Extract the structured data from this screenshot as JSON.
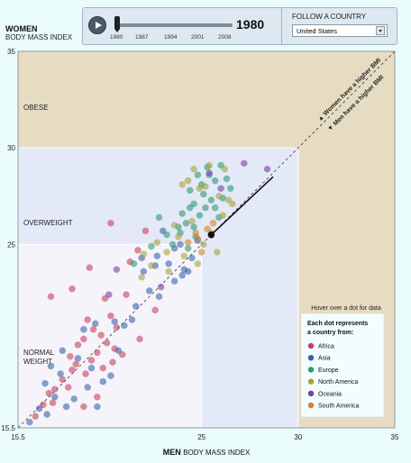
{
  "header": {
    "y_title": "WOMEN",
    "y_subtitle": "BODY MASS INDEX"
  },
  "controls": {
    "play_icon": "play-icon",
    "year": "1980",
    "slider_ticks": [
      "1980",
      "1987",
      "1994",
      "2001",
      "2008"
    ],
    "follow_label": "FOLLOW A COUNTRY",
    "selected_country": "United States"
  },
  "chart_data": {
    "type": "scatter",
    "title": "",
    "xlabel_bold": "MEN",
    "xlabel_rest": "BODY MASS INDEX",
    "xlim": [
      15.5,
      35
    ],
    "ylim": [
      15.5,
      35
    ],
    "x_ticks": [
      "15.5",
      "25",
      "30",
      "35"
    ],
    "y_ticks": [
      "35",
      "30",
      "25",
      "15.5"
    ],
    "regions": [
      {
        "label": "OBESE",
        "color": "#e5dcc2"
      },
      {
        "label": "OVERWEIGHT",
        "color": "#e4e9f7"
      },
      {
        "label": "NORMAL WEIGHT",
        "color": "#f4f4fa"
      }
    ],
    "diagonal_labels": [
      "Women have a higher BMI",
      "Men have a higher BMI"
    ],
    "hover_note": "Hover over a dot for data",
    "legend": {
      "title": "Each dot represents a country from:",
      "position": "bottom-right",
      "entries": [
        {
          "name": "Africa",
          "color": "#c9405a"
        },
        {
          "name": "Asia",
          "color": "#3a62a8"
        },
        {
          "name": "Europe",
          "color": "#2f9a72"
        },
        {
          "name": "North America",
          "color": "#a5a33e"
        },
        {
          "name": "Oceania",
          "color": "#7a3fa0"
        },
        {
          "name": "South America",
          "color": "#d9822b"
        }
      ]
    },
    "highlight": {
      "country": "United States",
      "x": 25.5,
      "y": 25.5,
      "trail_end": [
        28.7,
        28.5
      ]
    },
    "series": [
      {
        "name": "Africa",
        "points": [
          [
            16.4,
            16.1
          ],
          [
            16.8,
            16.7
          ],
          [
            17.1,
            17.3
          ],
          [
            17.4,
            17.5
          ],
          [
            17.3,
            16.8
          ],
          [
            17.8,
            18.0
          ],
          [
            18.1,
            17.6
          ],
          [
            18.3,
            18.5
          ],
          [
            18.2,
            19.2
          ],
          [
            18.6,
            19.8
          ],
          [
            18.9,
            20.1
          ],
          [
            18.5,
            18.8
          ],
          [
            19.0,
            18.3
          ],
          [
            19.3,
            19.0
          ],
          [
            19.4,
            20.6
          ],
          [
            19.6,
            19.4
          ],
          [
            19.1,
            21.1
          ],
          [
            19.8,
            20.3
          ],
          [
            20.1,
            19.9
          ],
          [
            20.3,
            21.3
          ],
          [
            20.0,
            22.2
          ],
          [
            20.4,
            18.9
          ],
          [
            20.6,
            20.7
          ],
          [
            19.2,
            23.8
          ],
          [
            18.3,
            22.7
          ],
          [
            17.2,
            22.3
          ],
          [
            21.1,
            22.4
          ],
          [
            21.3,
            24.1
          ],
          [
            22.1,
            25.7
          ],
          [
            21.7,
            24.7
          ],
          [
            22.6,
            21.6
          ],
          [
            20.3,
            26.1
          ],
          [
            21.8,
            20.1
          ],
          [
            19.6,
            17.1
          ],
          [
            18.9,
            16.6
          ],
          [
            20.9,
            19.3
          ],
          [
            20.5,
            19.6
          ],
          [
            19.9,
            18.6
          ]
        ]
      },
      {
        "name": "Asia",
        "points": [
          [
            16.1,
            15.8
          ],
          [
            16.6,
            16.5
          ],
          [
            17.0,
            16.2
          ],
          [
            17.4,
            17.1
          ],
          [
            17.7,
            18.3
          ],
          [
            18.0,
            16.6
          ],
          [
            18.4,
            17.0
          ],
          [
            18.6,
            19.1
          ],
          [
            19.1,
            17.6
          ],
          [
            19.3,
            18.6
          ],
          [
            19.6,
            16.6
          ],
          [
            19.9,
            17.9
          ],
          [
            20.3,
            18.2
          ],
          [
            20.7,
            19.5
          ],
          [
            21.0,
            20.8
          ],
          [
            21.6,
            21.8
          ],
          [
            22.3,
            22.6
          ],
          [
            22.8,
            22.3
          ],
          [
            23.3,
            24.0
          ],
          [
            23.6,
            23.1
          ],
          [
            24.1,
            23.7
          ],
          [
            24.5,
            24.3
          ],
          [
            23.9,
            25.0
          ],
          [
            22.6,
            23.9
          ],
          [
            21.4,
            21.1
          ],
          [
            20.5,
            21.0
          ],
          [
            19.5,
            20.9
          ],
          [
            18.9,
            20.6
          ],
          [
            17.8,
            19.5
          ],
          [
            17.2,
            18.7
          ],
          [
            16.9,
            17.8
          ],
          [
            21.9,
            24.3
          ],
          [
            23.0,
            25.7
          ],
          [
            24.8,
            25.2
          ],
          [
            22.0,
            23.6
          ],
          [
            24.0,
            23.4
          ],
          [
            22.7,
            24.4
          ],
          [
            23.6,
            24.8
          ],
          [
            24.3,
            23.6
          ]
        ]
      },
      {
        "name": "Europe",
        "points": [
          [
            23.5,
            25.0
          ],
          [
            23.9,
            25.6
          ],
          [
            24.2,
            26.1
          ],
          [
            24.6,
            25.9
          ],
          [
            24.9,
            26.5
          ],
          [
            25.2,
            26.9
          ],
          [
            25.5,
            27.3
          ],
          [
            25.1,
            27.6
          ],
          [
            24.6,
            27.1
          ],
          [
            24.0,
            26.6
          ],
          [
            24.4,
            27.8
          ],
          [
            25.0,
            28.1
          ],
          [
            25.7,
            28.3
          ],
          [
            26.1,
            27.4
          ],
          [
            25.9,
            26.4
          ],
          [
            26.3,
            28.4
          ],
          [
            26.5,
            27.9
          ],
          [
            24.8,
            28.6
          ],
          [
            25.3,
            29.0
          ],
          [
            24.7,
            25.4
          ],
          [
            23.8,
            25.9
          ],
          [
            22.8,
            26.4
          ],
          [
            22.4,
            24.9
          ],
          [
            21.5,
            24.0
          ],
          [
            24.3,
            24.8
          ],
          [
            25.4,
            28.6
          ],
          [
            24.4,
            26.9
          ],
          [
            23.2,
            25.5
          ],
          [
            26.0,
            29.1
          ],
          [
            25.7,
            26.9
          ]
        ]
      },
      {
        "name": "North America",
        "points": [
          [
            22.0,
            24.5
          ],
          [
            22.7,
            25.1
          ],
          [
            23.2,
            24.6
          ],
          [
            23.8,
            25.4
          ],
          [
            24.1,
            24.4
          ],
          [
            24.8,
            24.0
          ],
          [
            25.1,
            25.0
          ],
          [
            25.5,
            25.6
          ],
          [
            26.1,
            26.5
          ],
          [
            26.6,
            27.1
          ],
          [
            25.9,
            27.5
          ],
          [
            24.6,
            28.9
          ],
          [
            25.2,
            28.0
          ],
          [
            24.9,
            27.9
          ],
          [
            24.3,
            28.3
          ],
          [
            24.5,
            26.2
          ],
          [
            23.6,
            26.0
          ],
          [
            24.0,
            28.1
          ],
          [
            25.4,
            29.1
          ],
          [
            26.2,
            28.9
          ],
          [
            23.3,
            23.6
          ],
          [
            22.4,
            23.9
          ],
          [
            21.9,
            23.3
          ],
          [
            25.8,
            24.6
          ],
          [
            26.4,
            27.3
          ]
        ]
      },
      {
        "name": "Oceania",
        "points": [
          [
            25.4,
            28.7
          ],
          [
            26.0,
            27.9
          ],
          [
            27.2,
            29.2
          ],
          [
            28.4,
            28.9
          ],
          [
            20.6,
            23.7
          ],
          [
            20.2,
            22.4
          ],
          [
            22.9,
            22.8
          ]
        ]
      },
      {
        "name": "South America",
        "points": [
          [
            24.3,
            25.1
          ],
          [
            24.8,
            25.3
          ],
          [
            25.0,
            24.6
          ],
          [
            25.3,
            25.8
          ],
          [
            25.6,
            26.1
          ],
          [
            24.7,
            25.6
          ]
        ]
      }
    ]
  }
}
